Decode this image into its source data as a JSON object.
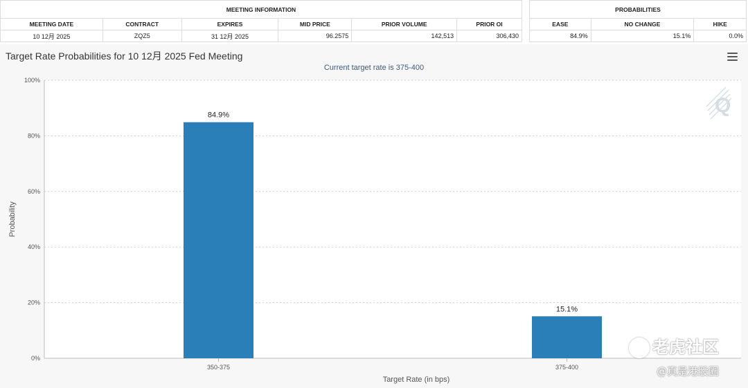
{
  "meeting_info": {
    "group_label": "MEETING INFORMATION",
    "headers": [
      "MEETING DATE",
      "CONTRACT",
      "EXPIRES",
      "MID PRICE",
      "PRIOR VOLUME",
      "PRIOR OI"
    ],
    "values": [
      "10 12月 2025",
      "ZQZ5",
      "31 12月 2025",
      "96.2575",
      "142,513",
      "306,430"
    ]
  },
  "probabilities": {
    "group_label": "PROBABILITIES",
    "headers": [
      "EASE",
      "NO CHANGE",
      "HIKE"
    ],
    "values": [
      "84.9%",
      "15.1%",
      "0.0%"
    ]
  },
  "chart_data": {
    "type": "bar",
    "title": "Target Rate Probabilities for 10 12月 2025 Fed Meeting",
    "subtitle": "Current target rate is 375-400",
    "categories": [
      "350-375",
      "375-400"
    ],
    "values": [
      84.9,
      15.1
    ],
    "data_labels": [
      "84.9%",
      "15.1%"
    ],
    "xlabel": "Target Rate (in bps)",
    "ylabel": "Probability",
    "ylim": [
      0,
      100
    ],
    "yticks": [
      0,
      20,
      40,
      60,
      80,
      100
    ],
    "ytick_labels": [
      "0%",
      "20%",
      "40%",
      "60%",
      "80%",
      "100%"
    ],
    "grid": true,
    "bar_color": "#2b7fb8"
  },
  "watermark": {
    "brand": "老虎社区",
    "handle": "@真是港股圈"
  }
}
